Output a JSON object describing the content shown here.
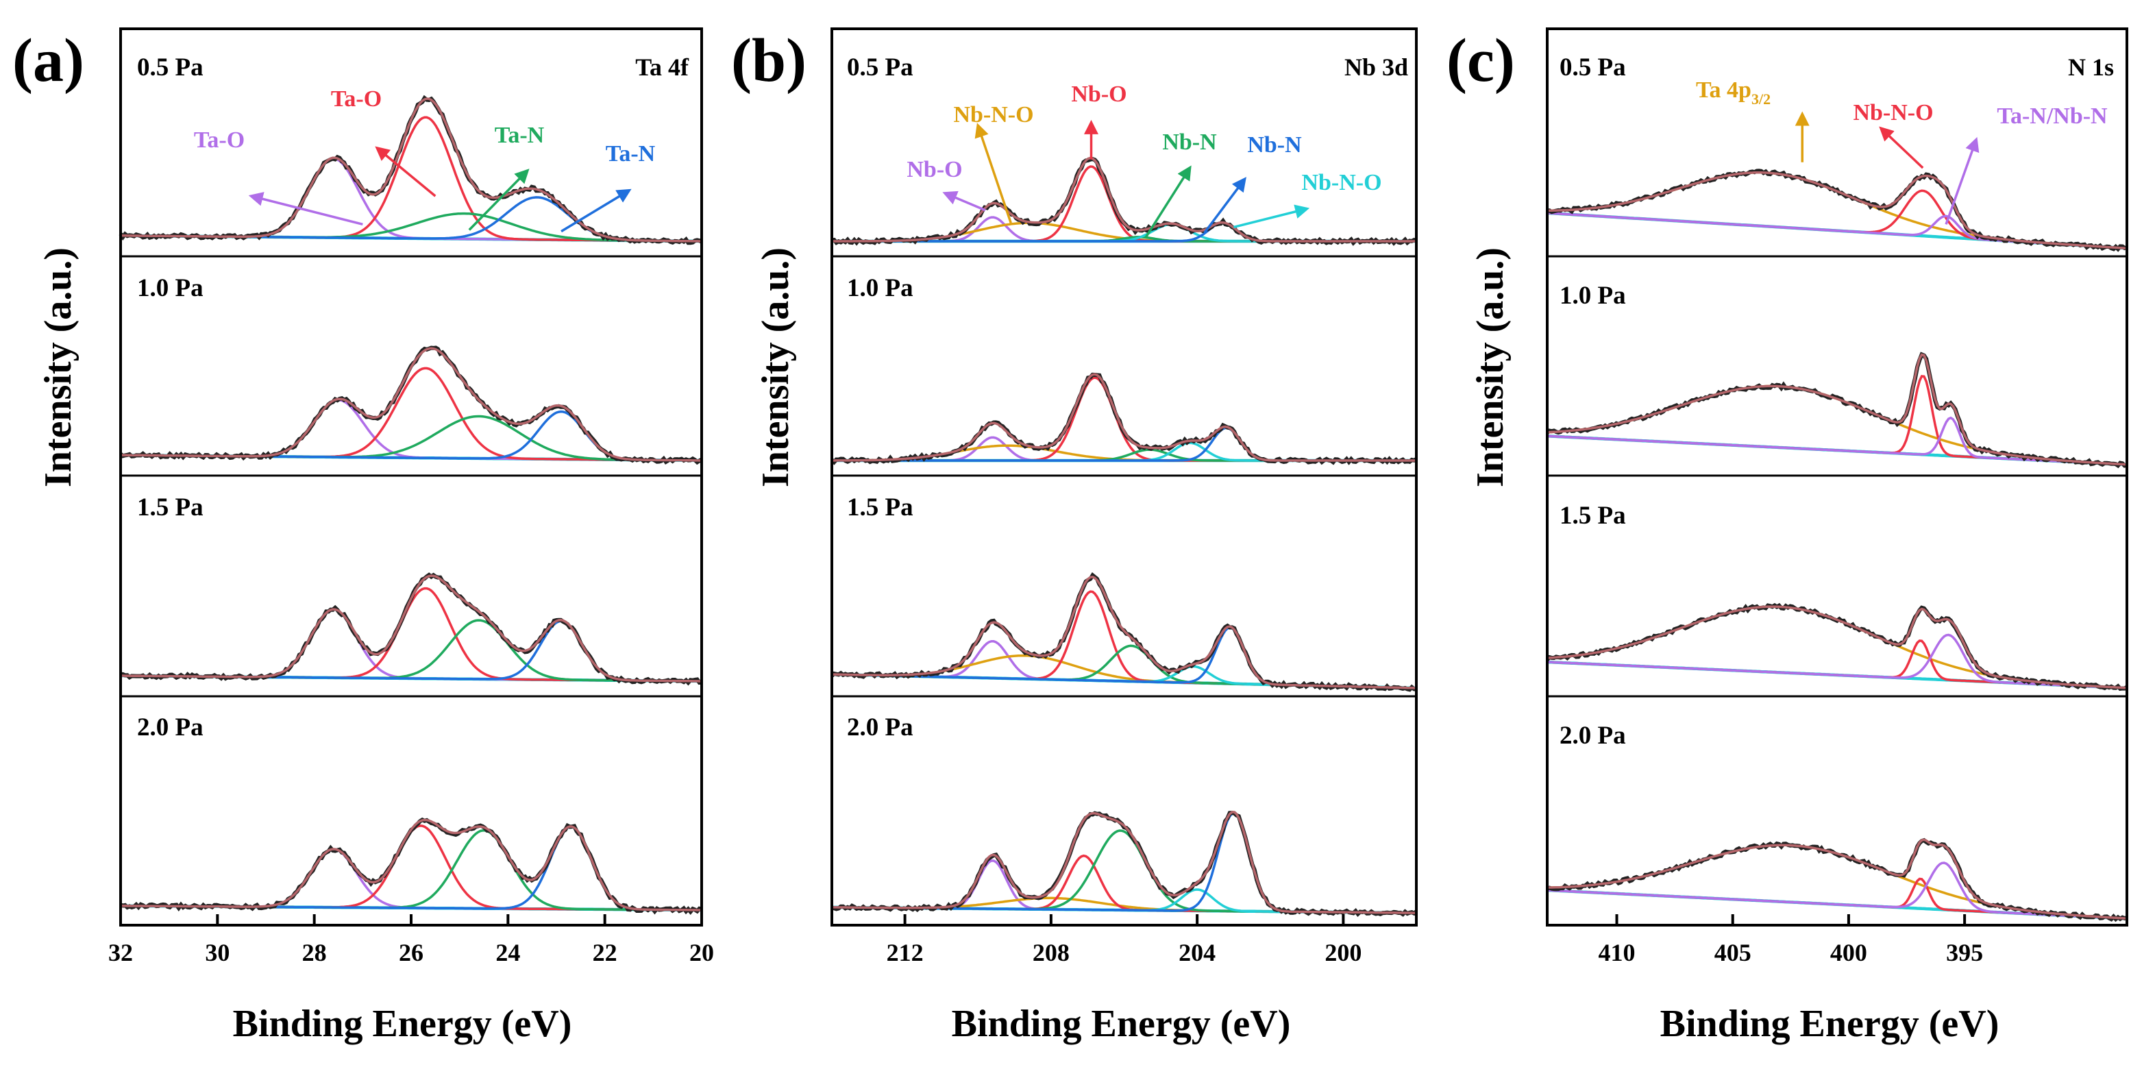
{
  "chart_data": [
    {
      "type": "line",
      "panel_label": "(a)",
      "element": "Ta 4f",
      "title": "",
      "xlabel": "Binding Energy (eV)",
      "ylabel": "Intensity (a.u.)",
      "xlim": [
        32,
        20
      ],
      "x_reversed": true,
      "xticks": [
        "32",
        "30",
        "28",
        "26",
        "24",
        "22",
        "20"
      ],
      "xtick_values": [
        32,
        30,
        28,
        26,
        24,
        22,
        20
      ],
      "grid": false,
      "rows": [
        {
          "label": "0.5 Pa",
          "baseline": [
            [
              32,
              0.04
            ],
            [
              20,
              0.0
            ]
          ],
          "components": [
            {
              "name": "Ta-O",
              "color": "#b06ee8",
              "center": 27.6,
              "height": 0.56,
              "fwhm": 1.2
            },
            {
              "name": "Ta-O",
              "color": "#ee3344",
              "center": 25.7,
              "height": 0.86,
              "fwhm": 1.3
            },
            {
              "name": "Ta-N",
              "color": "#1faa5e",
              "center": 24.9,
              "height": 0.18,
              "fwhm": 2.3
            },
            {
              "name": "Ta-N",
              "color": "#1f6fdc",
              "center": 23.4,
              "height": 0.3,
              "fwhm": 1.5
            }
          ]
        },
        {
          "label": "1.0 Pa",
          "baseline": [
            [
              32,
              0.04
            ],
            [
              20,
              0.0
            ]
          ],
          "components": [
            {
              "name": "Ta-O",
              "color": "#b06ee8",
              "center": 27.5,
              "height": 0.42,
              "fwhm": 1.2
            },
            {
              "name": "Ta-O",
              "color": "#ee3344",
              "center": 25.7,
              "height": 0.66,
              "fwhm": 1.4
            },
            {
              "name": "Ta-N",
              "color": "#1faa5e",
              "center": 24.6,
              "height": 0.31,
              "fwhm": 2.0
            },
            {
              "name": "Ta-N",
              "color": "#1f6fdc",
              "center": 22.9,
              "height": 0.35,
              "fwhm": 1.1
            }
          ]
        },
        {
          "label": "1.5 Pa",
          "baseline": [
            [
              32,
              0.04
            ],
            [
              20,
              0.0
            ]
          ],
          "components": [
            {
              "name": "Ta-O",
              "color": "#b06ee8",
              "center": 27.6,
              "height": 0.5,
              "fwhm": 1.1
            },
            {
              "name": "Ta-O",
              "color": "#ee3344",
              "center": 25.7,
              "height": 0.66,
              "fwhm": 1.2
            },
            {
              "name": "Ta-N",
              "color": "#1faa5e",
              "center": 24.6,
              "height": 0.43,
              "fwhm": 1.4
            },
            {
              "name": "Ta-N",
              "color": "#1f6fdc",
              "center": 22.9,
              "height": 0.43,
              "fwhm": 1.0
            }
          ]
        },
        {
          "label": "2.0 Pa",
          "baseline": [
            [
              32,
              0.03
            ],
            [
              20,
              0.0
            ]
          ],
          "components": [
            {
              "name": "Ta-O",
              "color": "#b06ee8",
              "center": 27.6,
              "height": 0.41,
              "fwhm": 1.1
            },
            {
              "name": "Ta-O",
              "color": "#ee3344",
              "center": 25.8,
              "height": 0.58,
              "fwhm": 1.2
            },
            {
              "name": "Ta-N",
              "color": "#1faa5e",
              "center": 24.5,
              "height": 0.55,
              "fwhm": 1.3
            },
            {
              "name": "Ta-N",
              "color": "#1f6fdc",
              "center": 22.7,
              "height": 0.58,
              "fwhm": 1.0
            }
          ]
        }
      ],
      "annotations": [
        {
          "text": "Ta-O",
          "color": "#b06ee8",
          "arrow_from": [
            27.0,
            0.12
          ],
          "arrow_to": [
            29.3,
            0.32
          ]
        },
        {
          "text": "Ta-O",
          "color": "#ee3344",
          "arrow_from": [
            25.5,
            0.32
          ],
          "arrow_to": [
            26.7,
            0.66
          ]
        },
        {
          "text": "Ta-N",
          "color": "#1faa5e",
          "arrow_from": [
            24.8,
            0.08
          ],
          "arrow_to": [
            23.6,
            0.5
          ]
        },
        {
          "text": "Ta-N",
          "color": "#1f6fdc",
          "arrow_from": [
            22.9,
            0.07
          ],
          "arrow_to": [
            21.5,
            0.36
          ]
        }
      ]
    },
    {
      "type": "line",
      "panel_label": "(b)",
      "element": "Nb 3d",
      "title": "",
      "xlabel": "Binding Energy (eV)",
      "ylabel": "Intensity (a.u.)",
      "xlim": [
        214,
        198
      ],
      "x_reversed": true,
      "xticks": [
        "212",
        "208",
        "204",
        "200"
      ],
      "xtick_values": [
        212,
        208,
        204,
        200
      ],
      "grid": false,
      "rows": [
        {
          "label": "0.5 Pa",
          "baseline": [
            [
              214,
              0.0
            ],
            [
              198,
              0.0
            ]
          ],
          "components": [
            {
              "name": "Nb-O",
              "color": "#b06ee8",
              "center": 209.6,
              "height": 0.17,
              "fwhm": 0.9
            },
            {
              "name": "Nb-N-O",
              "color": "#dea010",
              "center": 208.6,
              "height": 0.13,
              "fwhm": 3.2
            },
            {
              "name": "Nb-O",
              "color": "#ee3344",
              "center": 206.9,
              "height": 0.53,
              "fwhm": 1.1
            },
            {
              "name": "Nb-N",
              "color": "#1faa5e",
              "center": 205.6,
              "height": 0.03,
              "fwhm": 1.0
            },
            {
              "name": "Nb-N-O",
              "color": "#22cfd6",
              "center": 204.7,
              "height": 0.12,
              "fwhm": 1.2
            },
            {
              "name": "Nb-N",
              "color": "#1f6fdc",
              "center": 203.3,
              "height": 0.13,
              "fwhm": 0.9
            }
          ]
        },
        {
          "label": "1.0 Pa",
          "baseline": [
            [
              214,
              0.0
            ],
            [
              198,
              0.0
            ]
          ],
          "components": [
            {
              "name": "Nb-O",
              "color": "#b06ee8",
              "center": 209.6,
              "height": 0.17,
              "fwhm": 0.9
            },
            {
              "name": "Nb-N-O",
              "color": "#dea010",
              "center": 209.2,
              "height": 0.11,
              "fwhm": 3.2
            },
            {
              "name": "Nb-O",
              "color": "#ee3344",
              "center": 206.8,
              "height": 0.61,
              "fwhm": 1.2
            },
            {
              "name": "Nb-N",
              "color": "#1faa5e",
              "center": 205.3,
              "height": 0.08,
              "fwhm": 1.2
            },
            {
              "name": "Nb-N-O",
              "color": "#22cfd6",
              "center": 204.2,
              "height": 0.13,
              "fwhm": 1.0
            },
            {
              "name": "Nb-N",
              "color": "#1f6fdc",
              "center": 203.2,
              "height": 0.24,
              "fwhm": 0.9
            }
          ]
        },
        {
          "label": "1.5 Pa",
          "baseline": [
            [
              214,
              0.05
            ],
            [
              198,
              -0.05
            ]
          ],
          "components": [
            {
              "name": "Nb-O",
              "color": "#b06ee8",
              "center": 209.6,
              "height": 0.27,
              "fwhm": 1.0
            },
            {
              "name": "Nb-N-O",
              "color": "#dea010",
              "center": 208.7,
              "height": 0.17,
              "fwhm": 3.2
            },
            {
              "name": "Nb-O",
              "color": "#ee3344",
              "center": 206.9,
              "height": 0.65,
              "fwhm": 1.1
            },
            {
              "name": "Nb-N",
              "color": "#1faa5e",
              "center": 205.8,
              "height": 0.26,
              "fwhm": 1.3
            },
            {
              "name": "Nb-N-O",
              "color": "#22cfd6",
              "center": 204.1,
              "height": 0.12,
              "fwhm": 1.0
            },
            {
              "name": "Nb-N",
              "color": "#1f6fdc",
              "center": 203.1,
              "height": 0.41,
              "fwhm": 0.9
            }
          ]
        },
        {
          "label": "2.0 Pa",
          "baseline": [
            [
              214,
              0.02
            ],
            [
              198,
              -0.02
            ]
          ],
          "components": [
            {
              "name": "Nb-O",
              "color": "#b06ee8",
              "center": 209.6,
              "height": 0.34,
              "fwhm": 0.9
            },
            {
              "name": "Nb-N-O",
              "color": "#dea010",
              "center": 208.0,
              "height": 0.08,
              "fwhm": 3.2
            },
            {
              "name": "Nb-O",
              "color": "#ee3344",
              "center": 207.1,
              "height": 0.38,
              "fwhm": 1.0
            },
            {
              "name": "Nb-N",
              "color": "#1faa5e",
              "center": 206.1,
              "height": 0.56,
              "fwhm": 1.6
            },
            {
              "name": "Nb-N-O",
              "color": "#22cfd6",
              "center": 204.0,
              "height": 0.15,
              "fwhm": 1.0
            },
            {
              "name": "Nb-N",
              "color": "#1f6fdc",
              "center": 203.0,
              "height": 0.69,
              "fwhm": 1.0
            }
          ]
        }
      ],
      "annotations": [
        {
          "text": "Nb-O",
          "color": "#b06ee8",
          "arrow_from": [
            209.8,
            0.22
          ],
          "arrow_to": [
            210.9,
            0.34
          ]
        },
        {
          "text": "Nb-N-O",
          "color": "#dea010",
          "arrow_from": [
            209.1,
            0.13
          ],
          "arrow_to": [
            210.0,
            0.82
          ]
        },
        {
          "text": "Nb-O",
          "color": "#ee3344",
          "arrow_from": [
            206.9,
            0.58
          ],
          "arrow_to": [
            206.9,
            0.84
          ]
        },
        {
          "text": "Nb-N",
          "color": "#1faa5e",
          "arrow_from": [
            205.4,
            0.03
          ],
          "arrow_to": [
            204.2,
            0.52
          ]
        },
        {
          "text": "Nb-N",
          "color": "#1f6fdc",
          "arrow_from": [
            203.8,
            0.06
          ],
          "arrow_to": [
            202.7,
            0.44
          ]
        },
        {
          "text": "Nb-N-O",
          "color": "#22cfd6",
          "arrow_from": [
            203.0,
            0.1
          ],
          "arrow_to": [
            201.0,
            0.23
          ]
        }
      ]
    },
    {
      "type": "line",
      "panel_label": "(c)",
      "element": "N 1s",
      "title": "",
      "xlabel": "Binding Energy (eV)",
      "ylabel": "Intensity (a.u.)",
      "xlim": [
        413,
        388
      ],
      "x_reversed": true,
      "xticks": [
        "410",
        "405",
        "400",
        "395"
      ],
      "xtick_values": [
        410,
        405,
        400,
        395
      ],
      "grid": false,
      "rows": [
        {
          "label": "0.5 Pa",
          "baseline": [
            [
              413,
              0.2
            ],
            [
              388,
              -0.05
            ]
          ],
          "components": [
            {
              "name": "Ta 4p3/2",
              "color": "#dea010",
              "center": 403.5,
              "height": 0.38,
              "fwhm": 9.0
            },
            {
              "name": "Nb-N-O",
              "color": "#ee3344",
              "center": 396.8,
              "height": 0.32,
              "fwhm": 1.8
            },
            {
              "name": "Ta-N/Nb-N",
              "color": "#b06ee8",
              "center": 395.8,
              "height": 0.15,
              "fwhm": 1.2
            }
          ]
        },
        {
          "label": "1.0 Pa",
          "baseline": [
            [
              413,
              0.18
            ],
            [
              388,
              -0.03
            ]
          ],
          "components": [
            {
              "name": "Ta 4p3/2",
              "color": "#dea010",
              "center": 403.0,
              "height": 0.45,
              "fwhm": 10.0
            },
            {
              "name": "Nb-N-O",
              "color": "#ee3344",
              "center": 396.8,
              "height": 0.58,
              "fwhm": 0.9
            },
            {
              "name": "Ta-N/Nb-N",
              "color": "#b06ee8",
              "center": 395.6,
              "height": 0.28,
              "fwhm": 0.9
            }
          ]
        },
        {
          "label": "1.5 Pa",
          "baseline": [
            [
              413,
              0.14
            ],
            [
              388,
              -0.05
            ]
          ],
          "components": [
            {
              "name": "Ta 4p3/2",
              "color": "#dea010",
              "center": 403.0,
              "height": 0.48,
              "fwhm": 10.0
            },
            {
              "name": "Nb-N-O",
              "color": "#ee3344",
              "center": 396.9,
              "height": 0.28,
              "fwhm": 0.9
            },
            {
              "name": "Ta-N/Nb-N",
              "color": "#b06ee8",
              "center": 395.7,
              "height": 0.33,
              "fwhm": 1.5
            }
          ]
        },
        {
          "label": "2.0 Pa",
          "baseline": [
            [
              413,
              0.14
            ],
            [
              388,
              -0.06
            ]
          ],
          "components": [
            {
              "name": "Ta 4p3/2",
              "color": "#dea010",
              "center": 402.5,
              "height": 0.4,
              "fwhm": 10.0
            },
            {
              "name": "Nb-N-O",
              "color": "#ee3344",
              "center": 396.9,
              "height": 0.21,
              "fwhm": 0.8
            },
            {
              "name": "Ta-N/Nb-N",
              "color": "#b06ee8",
              "center": 395.9,
              "height": 0.33,
              "fwhm": 1.5
            }
          ]
        }
      ],
      "annotations": [
        {
          "text": "Ta 4p",
          "sub": "3/2",
          "color": "#dea010",
          "arrow_from": [
            402.0,
            0.56
          ],
          "arrow_to": [
            402.0,
            0.9
          ]
        },
        {
          "text": "Nb-N-O",
          "color": "#ee3344",
          "arrow_from": [
            396.8,
            0.52
          ],
          "arrow_to": [
            398.6,
            0.8
          ]
        },
        {
          "text": "Ta-N/Nb-N",
          "color": "#b06ee8",
          "arrow_from": [
            395.8,
            0.12
          ],
          "arrow_to": [
            394.5,
            0.72
          ]
        }
      ]
    }
  ],
  "styles": {
    "background_color": "#e8f0f7",
    "envelope_color": "#b5656a",
    "experimental_color": "#222222",
    "axis_color": "#000000"
  }
}
